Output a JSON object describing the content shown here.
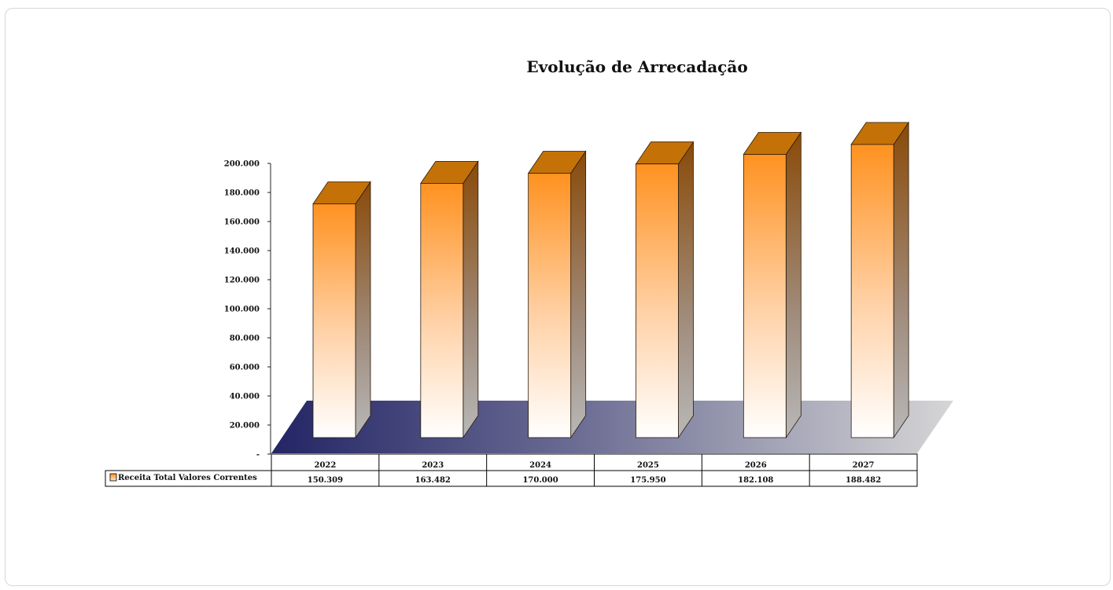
{
  "chart_data": {
    "type": "bar",
    "title": "Evolução de Arrecadação",
    "categories": [
      "2022",
      "2023",
      "2024",
      "2025",
      "2026",
      "2027"
    ],
    "series": [
      {
        "name": "Receita Total Valores Correntes",
        "values": [
          150309,
          163482,
          170000,
          175950,
          182108,
          188482
        ],
        "value_labels": [
          "150.309",
          "163.482",
          "170.000",
          "175.950",
          "182.108",
          "188.482"
        ]
      }
    ],
    "ylim": [
      0,
      200000
    ],
    "yticks": [
      0,
      20000,
      40000,
      60000,
      80000,
      100000,
      120000,
      140000,
      160000,
      180000,
      200000
    ],
    "ytick_labels": [
      "-",
      "20.000",
      "40.000",
      "60.000",
      "80.000",
      "100.000",
      "120.000",
      "140.000",
      "160.000",
      "180.000",
      "200.000"
    ],
    "style": "3d-columns",
    "data_table": true,
    "colors": {
      "bar_top": "#ff9220",
      "bar_bottom": "#ffffff",
      "bar_side": "#8a4a08",
      "bar_cap": "#c47208",
      "floor_dark": "#232565",
      "floor_light": "#d6d6d6"
    }
  }
}
